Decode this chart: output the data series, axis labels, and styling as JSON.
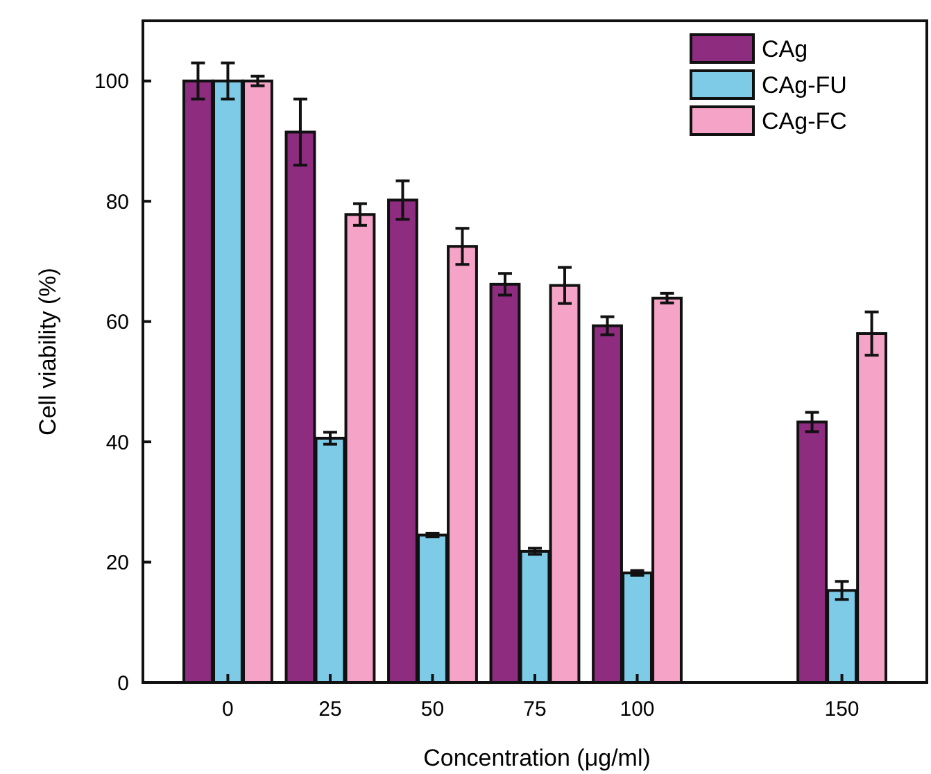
{
  "chart_data": {
    "type": "bar",
    "xlabel": "Concentration (μg/ml)",
    "ylabel": "Cell viability (%)",
    "categories": [
      "0",
      "25",
      "50",
      "75",
      "100",
      null,
      "150"
    ],
    "series": [
      {
        "name": "CAg",
        "color": "#8e2c80",
        "values": [
          100,
          91.5,
          80.2,
          66.2,
          59.3,
          null,
          43.3
        ],
        "errors": [
          3,
          5.5,
          3.2,
          1.8,
          1.5,
          null,
          1.6
        ]
      },
      {
        "name": "CAg-FU",
        "color": "#7ecbe8",
        "values": [
          100,
          40.6,
          24.5,
          21.8,
          18.2,
          null,
          15.3
        ],
        "errors": [
          3,
          1,
          0.3,
          0.5,
          0.4,
          null,
          1.5
        ]
      },
      {
        "name": "CAg-FC",
        "color": "#f5a3c6",
        "values": [
          100,
          77.8,
          72.5,
          66,
          63.9,
          null,
          58
        ],
        "errors": [
          0.8,
          1.8,
          3,
          3,
          0.8,
          null,
          3.6
        ]
      }
    ],
    "ylim": [
      0,
      110
    ],
    "yticks": [
      0,
      20,
      40,
      60,
      80,
      100
    ],
    "grid": false,
    "legend": "top right"
  }
}
